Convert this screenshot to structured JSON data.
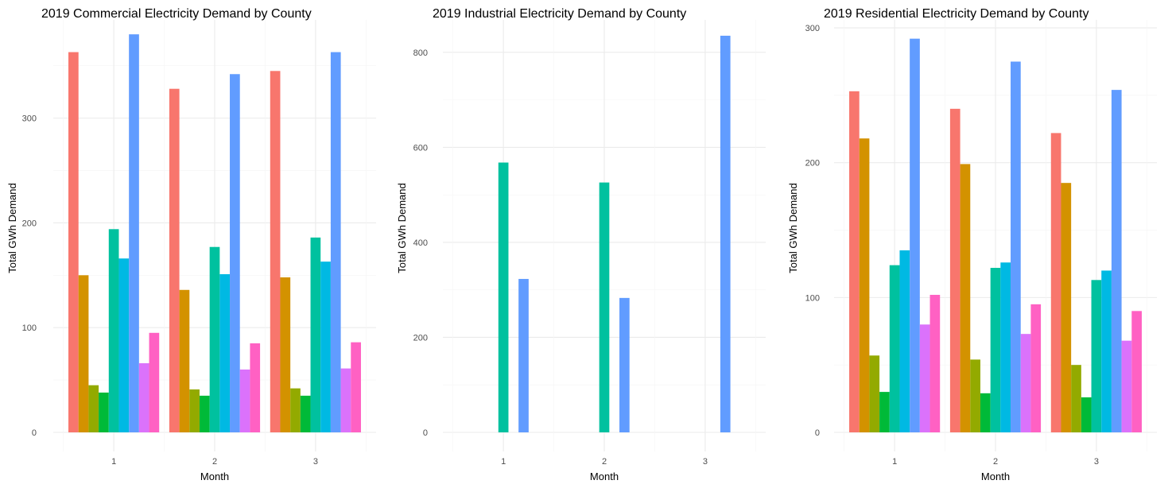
{
  "colors": {
    "county_palette": [
      "#F8766D",
      "#D39200",
      "#93AA00",
      "#00BA38",
      "#00C19F",
      "#00B9E3",
      "#619CFF",
      "#DB72FB",
      "#FF61C3"
    ],
    "grid_major": "#EBEBEB",
    "grid_minor": "#F5F5F5",
    "tick_text": "#4D4D4D",
    "text": "#000000"
  },
  "chart_data": [
    {
      "type": "bar",
      "title": "2019 Commercial Electricity Demand by County",
      "xlabel": "Month",
      "ylabel": "Total GWh Demand",
      "categories": [
        "1",
        "2",
        "3"
      ],
      "ylim": [
        0,
        390
      ],
      "yticks": [
        0,
        100,
        200,
        300
      ],
      "grid": true,
      "legend": "none",
      "series": [
        {
          "values": [
            363,
            328,
            345
          ]
        },
        {
          "values": [
            150,
            136,
            148
          ]
        },
        {
          "values": [
            45,
            41,
            42
          ]
        },
        {
          "values": [
            38,
            35,
            35
          ]
        },
        {
          "values": [
            194,
            177,
            186
          ]
        },
        {
          "values": [
            166,
            151,
            163
          ]
        },
        {
          "values": [
            380,
            342,
            363
          ]
        },
        {
          "values": [
            66,
            60,
            61
          ]
        },
        {
          "values": [
            95,
            85,
            86
          ]
        }
      ]
    },
    {
      "type": "bar",
      "title": "2019 Industrial Electricity Demand by County",
      "xlabel": "Month",
      "ylabel": "Total GWh Demand",
      "categories": [
        "1",
        "2",
        "3"
      ],
      "ylim": [
        0,
        860
      ],
      "yticks": [
        0,
        200,
        400,
        600,
        800
      ],
      "grid": true,
      "legend": "none",
      "series": [
        {
          "values": [
            0,
            0,
            0
          ]
        },
        {
          "values": [
            0,
            0,
            0
          ]
        },
        {
          "values": [
            0,
            0,
            0
          ]
        },
        {
          "values": [
            0,
            0,
            0
          ]
        },
        {
          "values": [
            568,
            526,
            0
          ]
        },
        {
          "values": [
            0,
            0,
            0
          ]
        },
        {
          "values": [
            323,
            283,
            835
          ]
        },
        {
          "values": [
            0,
            0,
            0
          ]
        },
        {
          "values": [
            0,
            0,
            0
          ]
        }
      ]
    },
    {
      "type": "bar",
      "title": "2019 Residential Electricity Demand by County",
      "xlabel": "Month",
      "ylabel": "Total GWh Demand",
      "categories": [
        "1",
        "2",
        "3"
      ],
      "ylim": [
        0,
        303
      ],
      "yticks": [
        0,
        100,
        200,
        300
      ],
      "grid": true,
      "legend": "none",
      "series": [
        {
          "values": [
            253,
            240,
            222
          ]
        },
        {
          "values": [
            218,
            199,
            185
          ]
        },
        {
          "values": [
            57,
            54,
            50
          ]
        },
        {
          "values": [
            30,
            29,
            26
          ]
        },
        {
          "values": [
            124,
            122,
            113
          ]
        },
        {
          "values": [
            135,
            126,
            120
          ]
        },
        {
          "values": [
            292,
            275,
            254
          ]
        },
        {
          "values": [
            80,
            73,
            68
          ]
        },
        {
          "values": [
            102,
            95,
            90
          ]
        }
      ]
    }
  ]
}
